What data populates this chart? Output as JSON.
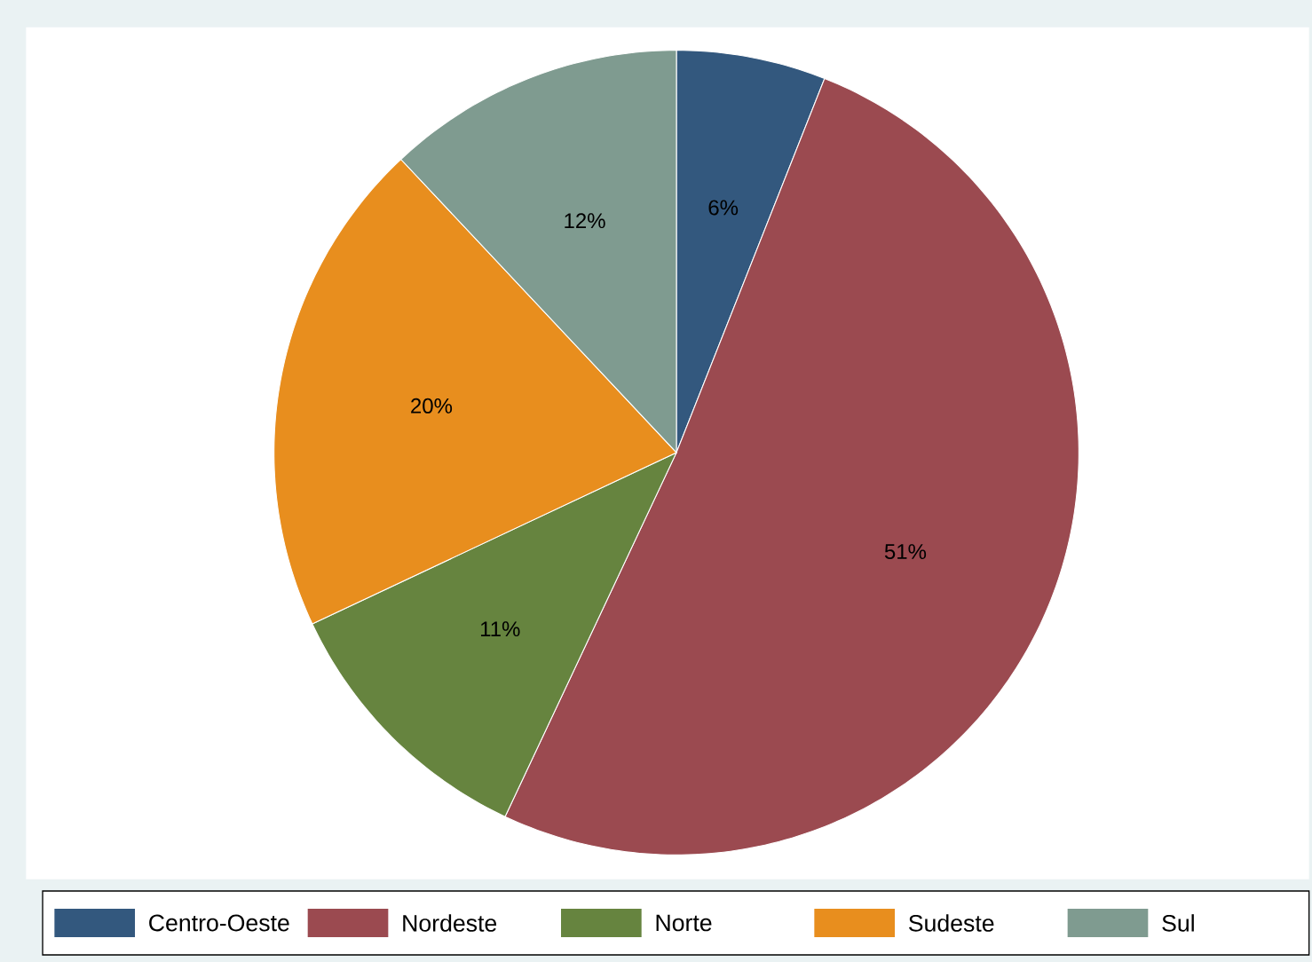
{
  "chart_data": {
    "type": "pie",
    "categories": [
      "Centro-Oeste",
      "Nordeste",
      "Norte",
      "Sudeste",
      "Sul"
    ],
    "values": [
      6,
      51,
      11,
      20,
      12
    ],
    "value_labels": [
      "6%",
      "51%",
      "11%",
      "20%",
      "12%"
    ],
    "colors": [
      "#33587e",
      "#9b4a50",
      "#66843f",
      "#e88e1e",
      "#7f9b90"
    ],
    "legend": "bottom"
  }
}
